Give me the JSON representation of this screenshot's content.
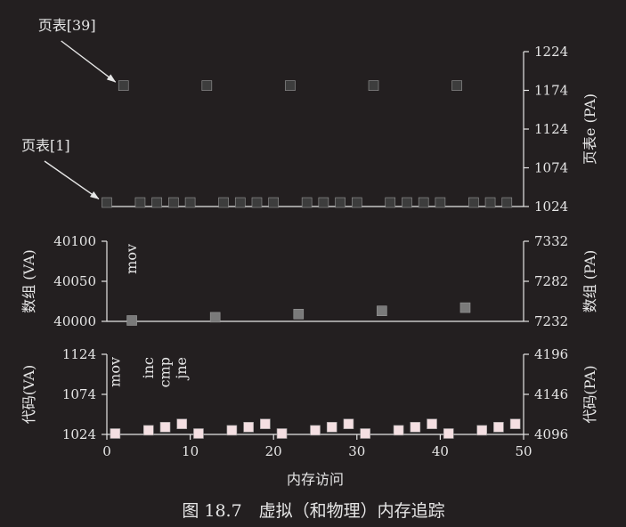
{
  "caption": "图 18.7　虚拟（和物理）内存追踪",
  "xlabel": "内存访问",
  "chart_data": [
    {
      "type": "scatter",
      "name": "page-table",
      "right_ylabel": "页表e (PA)",
      "ylim": [
        1024,
        1224
      ],
      "yticks": [
        "1024",
        "1074",
        "1124",
        "1174",
        "1224"
      ],
      "xlim": [
        0,
        50
      ],
      "color": "#3d3d3d",
      "points": [
        {
          "x": 2,
          "y": 1179
        },
        {
          "x": 12,
          "y": 1179
        },
        {
          "x": 22,
          "y": 1179
        },
        {
          "x": 32,
          "y": 1179
        },
        {
          "x": 42,
          "y": 1179
        },
        {
          "x": 0,
          "y": 1028
        },
        {
          "x": 4,
          "y": 1028
        },
        {
          "x": 6,
          "y": 1028
        },
        {
          "x": 8,
          "y": 1028
        },
        {
          "x": 10,
          "y": 1028
        },
        {
          "x": 14,
          "y": 1028
        },
        {
          "x": 16,
          "y": 1028
        },
        {
          "x": 18,
          "y": 1028
        },
        {
          "x": 20,
          "y": 1028
        },
        {
          "x": 24,
          "y": 1028
        },
        {
          "x": 26,
          "y": 1028
        },
        {
          "x": 28,
          "y": 1028
        },
        {
          "x": 30,
          "y": 1028
        },
        {
          "x": 34,
          "y": 1028
        },
        {
          "x": 36,
          "y": 1028
        },
        {
          "x": 38,
          "y": 1028
        },
        {
          "x": 40,
          "y": 1028
        },
        {
          "x": 44,
          "y": 1028
        },
        {
          "x": 46,
          "y": 1028
        },
        {
          "x": 48,
          "y": 1028
        }
      ],
      "annotations": [
        {
          "text": "页表[39]",
          "x": 2,
          "y": 1179
        },
        {
          "text": "页表[1]",
          "x": 0,
          "y": 1028
        }
      ]
    },
    {
      "type": "scatter",
      "name": "array",
      "left_ylabel": "数组 (VA)",
      "right_ylabel": "数组 (PA)",
      "left_ylim": [
        40000,
        40100
      ],
      "left_yticks": [
        "40000",
        "40050",
        "40100"
      ],
      "right_yticks": [
        "7232",
        "7282",
        "7332"
      ],
      "xlim": [
        0,
        50
      ],
      "color": "#7a7a7a",
      "points": [
        {
          "x": 3,
          "y": 40000
        },
        {
          "x": 13,
          "y": 40004
        },
        {
          "x": 23,
          "y": 40008
        },
        {
          "x": 33,
          "y": 40012
        },
        {
          "x": 43,
          "y": 40016
        }
      ],
      "annotations": [
        {
          "text": "mov",
          "x": 3
        }
      ]
    },
    {
      "type": "scatter",
      "name": "code",
      "left_ylabel": "代码(VA)",
      "right_ylabel": "代码(PA)",
      "left_ylim": [
        1024,
        1124
      ],
      "left_yticks": [
        "1024",
        "1074",
        "1124"
      ],
      "right_yticks": [
        "4096",
        "4146",
        "4196"
      ],
      "xlim": [
        0,
        50
      ],
      "xticks": [
        "0",
        "10",
        "20",
        "30",
        "40",
        "50"
      ],
      "color": "#f4dfe2",
      "points": [
        {
          "x": 1,
          "y": 1024
        },
        {
          "x": 5,
          "y": 1028
        },
        {
          "x": 7,
          "y": 1032
        },
        {
          "x": 9,
          "y": 1036
        },
        {
          "x": 11,
          "y": 1024
        },
        {
          "x": 15,
          "y": 1028
        },
        {
          "x": 17,
          "y": 1032
        },
        {
          "x": 19,
          "y": 1036
        },
        {
          "x": 21,
          "y": 1024
        },
        {
          "x": 25,
          "y": 1028
        },
        {
          "x": 27,
          "y": 1032
        },
        {
          "x": 29,
          "y": 1036
        },
        {
          "x": 31,
          "y": 1024
        },
        {
          "x": 35,
          "y": 1028
        },
        {
          "x": 37,
          "y": 1032
        },
        {
          "x": 39,
          "y": 1036
        },
        {
          "x": 41,
          "y": 1024
        },
        {
          "x": 45,
          "y": 1028
        },
        {
          "x": 47,
          "y": 1032
        },
        {
          "x": 49,
          "y": 1036
        }
      ],
      "annotations": [
        {
          "text": "mov",
          "x": 1
        },
        {
          "text": "inc",
          "x": 5
        },
        {
          "text": "cmp",
          "x": 7
        },
        {
          "text": "jne",
          "x": 9
        }
      ]
    }
  ]
}
